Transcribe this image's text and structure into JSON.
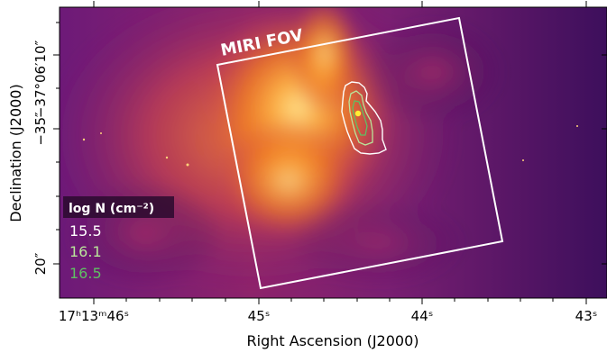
{
  "image": {
    "x_axis": {
      "title": "Right Ascension (J2000)",
      "tick_labels": [
        {
          "main": "17ʰ13ᵐ46ˢ"
        },
        {
          "main": "45ˢ"
        },
        {
          "main": "44ˢ"
        },
        {
          "main": "43ˢ"
        }
      ]
    },
    "y_axis": {
      "title": "Declination (J2000)",
      "tick_labels": [
        {
          "main": "−37°06′10″"
        },
        {
          "main": "−35″"
        },
        {
          "main": "20″"
        }
      ]
    },
    "overlay_label": "MIRI FOV",
    "legend": {
      "title": "log N (cm⁻²)",
      "entries": [
        {
          "label": "15.5",
          "color": "#ffffff"
        },
        {
          "label": "16.1",
          "color": "#b9e59a"
        },
        {
          "label": "16.5",
          "color": "#5fbf63"
        }
      ]
    },
    "colormap": "inferno",
    "marker_color": "#ffee33"
  }
}
